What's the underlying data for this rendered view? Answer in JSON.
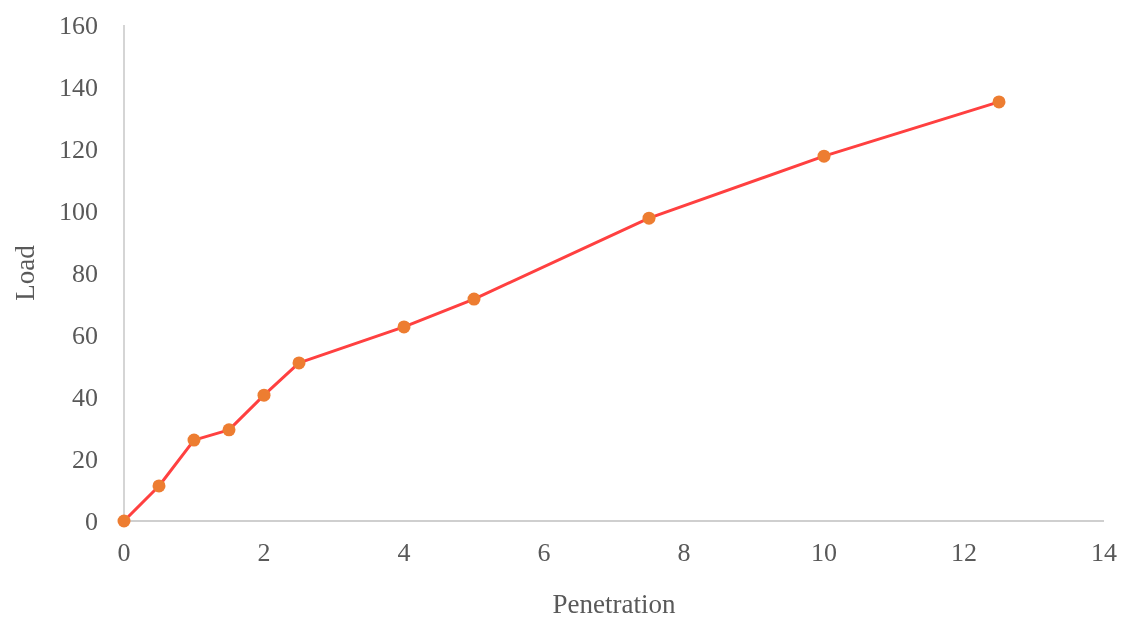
{
  "chart_data": {
    "type": "line",
    "xlabel": "Penetration",
    "ylabel": "Load",
    "xlim": [
      0,
      14
    ],
    "xticks": [
      0,
      2,
      4,
      6,
      8,
      10,
      12,
      14
    ],
    "ylim": [
      0,
      160
    ],
    "yticks": [
      0,
      20,
      40,
      60,
      80,
      100,
      120,
      140,
      160
    ],
    "grid": false,
    "marker": "circle",
    "line_style": "solid",
    "x": [
      0,
      0.5,
      1,
      1.5,
      2,
      2.5,
      4,
      5,
      7.5,
      10,
      12.5
    ],
    "series": [
      {
        "color": "#ff4040",
        "colors": [
          "#ed7d31",
          "#ed7d31",
          "#ed7d31",
          "#ed7d31",
          "#ed7d31",
          "#ed7d31",
          "#ed7d31",
          "#ed7d31",
          "#ed7d31",
          "#ed7d31",
          "#ed7d31"
        ],
        "values": [
          0,
          11.3,
          26.1,
          29.4,
          40.6,
          51,
          62.6,
          71.6,
          97.7,
          117.7,
          135.2
        ]
      }
    ]
  }
}
